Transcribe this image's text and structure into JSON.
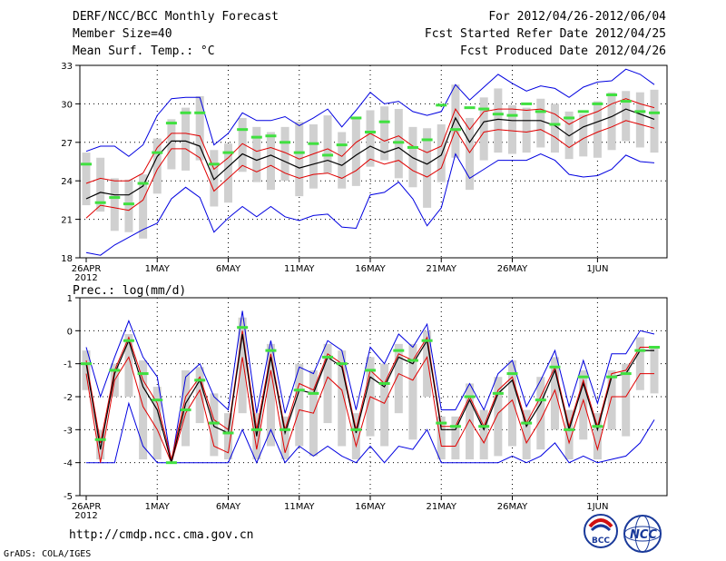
{
  "header": {
    "title": "DERF/NCC/BCC Monthly Forecast",
    "member_size": "Member Size=40",
    "variable": "Mean Surf. Temp.: °C",
    "forecast_period": "For 2012/04/26-2012/06/04",
    "started_refer": "Fcst Started Refer Date 2012/04/25",
    "produced": "Fcst Produced Date 2012/04/26"
  },
  "footer": {
    "url": "http://cmdp.ncc.cma.gov.cn",
    "credit": "GrADS: COLA/IGES",
    "logo1_text": "BCC",
    "logo2_text": "NCC"
  },
  "colors": {
    "mean": "#000000",
    "inner": "#e00000",
    "outer": "#0000e0",
    "box": "#d0d0d0",
    "obs": "#40e040"
  },
  "chart_data": [
    {
      "type": "line",
      "title": "Mean Surf. Temp.: °C",
      "x_labels": [
        "26APR",
        "1MAY",
        "6MAY",
        "11MAY",
        "16MAY",
        "21MAY",
        "26MAY",
        "1JUN"
      ],
      "x_label_days": [
        0,
        5,
        10,
        15,
        20,
        25,
        30,
        36
      ],
      "year_label": "2012",
      "ylim": [
        18,
        33
      ],
      "yticks": [
        18,
        21,
        24,
        27,
        30,
        33
      ],
      "days": 40,
      "series": [
        {
          "name": "mean",
          "values": [
            22.6,
            23.1,
            22.9,
            22.9,
            23.6,
            25.9,
            27.1,
            27.1,
            26.7,
            24.1,
            25.1,
            26.1,
            25.6,
            26.0,
            25.5,
            25.0,
            25.3,
            25.6,
            25.2,
            26.0,
            26.7,
            26.2,
            26.6,
            25.8,
            25.3,
            26.0,
            28.9,
            27.0,
            28.6,
            28.8,
            28.7,
            28.7,
            28.7,
            28.3,
            27.5,
            28.2,
            28.6,
            29.0,
            29.6,
            29.2,
            28.8
          ]
        },
        {
          "name": "upper_inner",
          "values": [
            23.8,
            24.2,
            24.0,
            24.0,
            24.6,
            26.6,
            27.7,
            27.7,
            27.5,
            24.9,
            25.8,
            26.9,
            26.3,
            26.6,
            26.2,
            25.7,
            26.1,
            26.5,
            25.9,
            27.0,
            27.7,
            27.1,
            27.5,
            26.7,
            26.2,
            26.7,
            29.6,
            28.0,
            29.4,
            29.6,
            29.6,
            29.5,
            29.6,
            29.2,
            28.4,
            29.0,
            29.4,
            30.0,
            30.4,
            30.0,
            29.7
          ]
        },
        {
          "name": "lower_inner",
          "values": [
            21.1,
            22.1,
            21.9,
            21.7,
            22.5,
            24.9,
            26.5,
            26.5,
            25.8,
            23.2,
            24.2,
            25.2,
            24.7,
            25.2,
            24.6,
            24.2,
            24.5,
            24.6,
            24.2,
            24.8,
            25.7,
            25.3,
            25.6,
            24.8,
            24.3,
            25.0,
            28.0,
            26.2,
            27.8,
            28.0,
            27.9,
            27.8,
            28.0,
            27.4,
            26.6,
            27.3,
            27.8,
            28.2,
            28.7,
            28.4,
            28.1
          ]
        },
        {
          "name": "upper_outer",
          "values": [
            26.3,
            26.7,
            26.7,
            25.9,
            26.8,
            29.1,
            30.4,
            30.5,
            30.5,
            26.8,
            27.7,
            29.3,
            28.7,
            28.7,
            29.0,
            28.3,
            28.9,
            29.6,
            28.2,
            29.5,
            30.9,
            30.0,
            30.2,
            29.4,
            29.1,
            29.4,
            31.5,
            30.3,
            31.3,
            32.3,
            31.6,
            31.0,
            31.4,
            31.2,
            30.5,
            31.3,
            31.7,
            31.8,
            32.7,
            32.3,
            31.5
          ]
        },
        {
          "name": "lower_outer",
          "values": [
            18.4,
            18.2,
            19.0,
            19.6,
            20.2,
            20.7,
            22.6,
            23.5,
            22.7,
            20.0,
            21.1,
            22.0,
            21.2,
            22.0,
            21.2,
            20.9,
            21.3,
            21.4,
            20.4,
            20.3,
            22.9,
            23.1,
            23.9,
            22.6,
            20.5,
            21.9,
            26.1,
            24.2,
            24.9,
            25.6,
            25.6,
            25.6,
            26.1,
            25.6,
            24.5,
            24.3,
            24.4,
            24.9,
            26.0,
            25.5,
            25.4
          ]
        },
        {
          "name": "box_top",
          "values": [
            26.2,
            25.8,
            24.2,
            24.1,
            24.5,
            27.3,
            28.8,
            29.7,
            30.6,
            26.4,
            26.9,
            28.9,
            28.2,
            27.8,
            28.2,
            28.6,
            28.4,
            29.1,
            27.8,
            28.9,
            29.5,
            29.8,
            29.6,
            28.2,
            28.1,
            28.4,
            31.5,
            28.9,
            30.5,
            31.2,
            29.9,
            29.7,
            30.4,
            30.0,
            29.4,
            29.2,
            30.2,
            30.9,
            31.0,
            30.9,
            31.1
          ]
        },
        {
          "name": "box_bottom",
          "values": [
            22.1,
            21.6,
            20.1,
            20.0,
            19.5,
            23.0,
            24.9,
            24.8,
            25.6,
            22.0,
            22.3,
            24.7,
            23.9,
            23.3,
            24.0,
            22.8,
            23.4,
            24.6,
            23.4,
            23.6,
            25.1,
            25.6,
            24.2,
            23.5,
            21.9,
            23.9,
            25.8,
            23.3,
            25.6,
            26.2,
            26.1,
            26.2,
            26.6,
            26.2,
            25.7,
            25.9,
            25.8,
            26.4,
            27.1,
            26.6,
            26.2
          ]
        },
        {
          "name": "observed",
          "values": [
            25.3,
            22.3,
            22.7,
            22.2,
            23.8,
            26.2,
            28.5,
            29.3,
            29.3,
            25.3,
            26.2,
            28.0,
            27.4,
            27.5,
            27.0,
            26.2,
            26.9,
            26.0,
            26.8,
            28.9,
            27.8,
            28.6,
            27.0,
            26.6,
            27.2,
            29.9,
            28.0,
            29.7,
            29.6,
            29.2,
            29.1,
            30.0,
            29.4,
            28.4,
            28.9,
            29.4,
            30.0,
            30.7,
            30.2,
            29.4,
            29.3
          ]
        }
      ]
    },
    {
      "type": "line",
      "title": "Prec.: log(mm/d)",
      "x_labels": [
        "26APR",
        "1MAY",
        "6MAY",
        "11MAY",
        "16MAY",
        "21MAY",
        "26MAY",
        "1JUN"
      ],
      "x_label_days": [
        0,
        5,
        10,
        15,
        20,
        25,
        30,
        36
      ],
      "year_label": "2012",
      "ylim": [
        -5,
        1
      ],
      "yticks": [
        -5,
        -4,
        -3,
        -2,
        -1,
        0,
        1
      ],
      "days": 40,
      "series": [
        {
          "name": "mean",
          "values": [
            -1.0,
            -3.6,
            -1.3,
            -0.3,
            -1.7,
            -2.4,
            -4.0,
            -2.2,
            -1.5,
            -2.9,
            -3.1,
            -0.1,
            -3.2,
            -0.8,
            -3.1,
            -1.8,
            -1.9,
            -0.8,
            -1.1,
            -3.1,
            -1.4,
            -1.7,
            -0.8,
            -1.0,
            -0.3,
            -3.0,
            -3.0,
            -2.1,
            -3.0,
            -1.9,
            -1.5,
            -2.9,
            -2.2,
            -1.2,
            -3.0,
            -1.6,
            -3.0,
            -1.4,
            -1.3,
            -0.6,
            -0.6
          ]
        },
        {
          "name": "upper_inner",
          "values": [
            -0.9,
            -3.4,
            -1.2,
            -0.2,
            -1.5,
            -2.2,
            -3.9,
            -2.0,
            -1.4,
            -2.7,
            -3.0,
            0.0,
            -3.0,
            -0.7,
            -3.0,
            -1.6,
            -1.8,
            -0.7,
            -1.0,
            -3.0,
            -1.2,
            -1.6,
            -0.7,
            -0.9,
            -0.2,
            -2.9,
            -2.9,
            -2.0,
            -2.9,
            -1.8,
            -1.4,
            -2.8,
            -2.0,
            -1.1,
            -2.9,
            -1.5,
            -2.9,
            -1.3,
            -1.2,
            -0.5,
            -0.5
          ]
        },
        {
          "name": "lower_inner",
          "values": [
            -1.3,
            -4.0,
            -1.5,
            -0.8,
            -2.3,
            -3.0,
            -4.0,
            -2.5,
            -1.8,
            -3.5,
            -3.7,
            -0.8,
            -3.6,
            -1.2,
            -3.7,
            -2.4,
            -2.5,
            -1.4,
            -1.8,
            -3.5,
            -2.0,
            -2.2,
            -1.3,
            -1.5,
            -0.8,
            -3.5,
            -3.5,
            -2.7,
            -3.4,
            -2.5,
            -2.1,
            -3.4,
            -2.7,
            -1.8,
            -3.4,
            -2.1,
            -3.6,
            -2.0,
            -2.0,
            -1.3,
            -1.3
          ]
        },
        {
          "name": "upper_outer",
          "values": [
            -0.5,
            -2.0,
            -0.8,
            0.3,
            -0.8,
            -1.4,
            -4.0,
            -1.4,
            -1.0,
            -2.0,
            -2.4,
            0.6,
            -2.5,
            -0.3,
            -2.5,
            -1.1,
            -1.3,
            -0.3,
            -0.6,
            -2.4,
            -0.5,
            -1.0,
            -0.1,
            -0.5,
            0.2,
            -2.4,
            -2.4,
            -1.6,
            -2.4,
            -1.3,
            -0.9,
            -2.3,
            -1.5,
            -0.6,
            -2.3,
            -0.9,
            -2.2,
            -0.7,
            -0.7,
            0.0,
            -0.1
          ]
        },
        {
          "name": "lower_outer",
          "values": [
            -4.0,
            -4.0,
            -4.0,
            -2.2,
            -3.5,
            -4.0,
            -4.0,
            -4.0,
            -4.0,
            -4.0,
            -4.0,
            -3.0,
            -4.0,
            -3.0,
            -4.0,
            -3.5,
            -3.8,
            -3.5,
            -3.8,
            -4.0,
            -3.5,
            -4.0,
            -3.5,
            -3.6,
            -3.0,
            -4.0,
            -4.0,
            -4.0,
            -4.0,
            -4.0,
            -3.8,
            -4.0,
            -3.8,
            -3.4,
            -4.0,
            -3.8,
            -4.0,
            -3.9,
            -3.8,
            -3.4,
            -2.7
          ]
        },
        {
          "name": "box_top",
          "values": [
            -0.6,
            -3.0,
            -1.0,
            -0.1,
            -0.9,
            -1.7,
            -4.0,
            -1.2,
            -1.1,
            -1.9,
            -2.5,
            0.4,
            -2.5,
            -0.4,
            -2.6,
            -1.0,
            -1.2,
            -0.4,
            -0.6,
            -2.5,
            -0.8,
            -1.0,
            -0.4,
            -0.4,
            0.0,
            -2.6,
            -2.6,
            -1.6,
            -2.4,
            -1.4,
            -0.9,
            -2.4,
            -1.4,
            -0.8,
            -2.4,
            -1.2,
            -2.5,
            -1.2,
            -1.0,
            -0.2,
            -0.5
          ]
        },
        {
          "name": "box_bottom",
          "values": [
            -1.8,
            -3.9,
            -2.0,
            -2.0,
            -3.9,
            -3.9,
            -4.0,
            -3.5,
            -2.8,
            -3.8,
            -3.9,
            -2.5,
            -3.9,
            -3.5,
            -3.9,
            -3.5,
            -3.8,
            -2.8,
            -3.5,
            -3.9,
            -3.2,
            -3.5,
            -2.5,
            -3.3,
            -2.0,
            -3.9,
            -3.9,
            -3.9,
            -3.9,
            -3.8,
            -3.5,
            -3.9,
            -3.6,
            -3.0,
            -3.9,
            -3.3,
            -3.9,
            -3.0,
            -3.2,
            -1.8,
            -1.9
          ]
        },
        {
          "name": "observed",
          "values": [
            -1.0,
            -3.3,
            -1.2,
            -0.3,
            -1.3,
            -2.1,
            -4.0,
            -2.4,
            -1.5,
            -2.8,
            -3.1,
            0.1,
            -3.0,
            -0.6,
            -3.0,
            -1.8,
            -1.9,
            -0.8,
            -1.0,
            -3.0,
            -1.2,
            -1.6,
            -0.6,
            -0.9,
            -0.3,
            -2.8,
            -2.9,
            -2.0,
            -2.9,
            -1.9,
            -1.3,
            -2.8,
            -2.1,
            -1.1,
            -3.0,
            -1.4,
            -2.9,
            -1.4,
            -1.3,
            -0.6,
            -0.5
          ]
        }
      ]
    }
  ]
}
